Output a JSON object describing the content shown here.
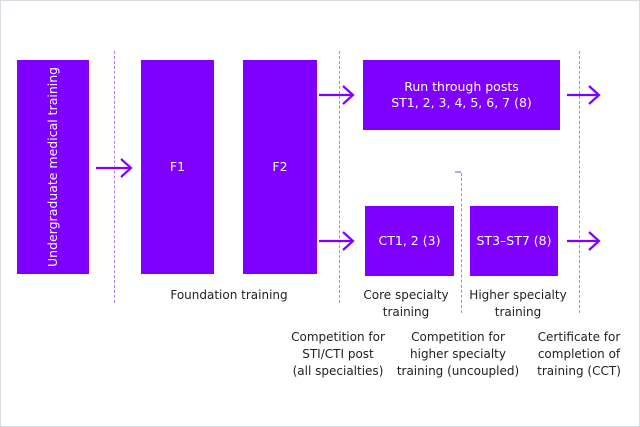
{
  "colors": {
    "box": "#8000ff",
    "arrow": "#8000ff",
    "divider": "#b87ee8"
  },
  "boxes": {
    "undergrad": "Undergraduate medical training",
    "f1": "F1",
    "f2": "F2",
    "run_through_line1": "Run through posts",
    "run_through_line2": "ST1, 2, 3, 4, 5, 6, 7 (8)",
    "core": "CT1, 2 (3)",
    "higher": "ST3–ST7 (8)"
  },
  "stage_labels": {
    "foundation": "Foundation training",
    "core_1": "Core specialty",
    "core_2": "training",
    "higher_1": "Higher specialty",
    "higher_2": "training"
  },
  "milestones": [
    {
      "lines": [
        "Competition for",
        "STI/CTI post",
        "(all specialties)"
      ]
    },
    {
      "lines": [
        "Competition for",
        "higher specialty",
        "training (uncoupled)"
      ]
    },
    {
      "lines": [
        "Certificate for",
        "completion of",
        "training (CCT)"
      ]
    }
  ]
}
